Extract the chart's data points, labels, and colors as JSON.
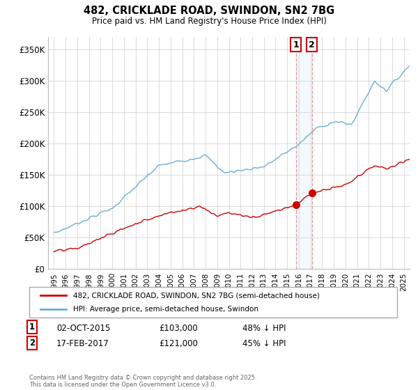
{
  "title1": "482, CRICKLADE ROAD, SWINDON, SN2 7BG",
  "title2": "Price paid vs. HM Land Registry's House Price Index (HPI)",
  "xlim_start": 1994.5,
  "xlim_end": 2025.5,
  "ylim": [
    0,
    370000
  ],
  "yticks": [
    0,
    50000,
    100000,
    150000,
    200000,
    250000,
    300000,
    350000
  ],
  "ytick_labels": [
    "£0",
    "£50K",
    "£100K",
    "£150K",
    "£200K",
    "£250K",
    "£300K",
    "£350K"
  ],
  "xticks": [
    1995,
    1996,
    1997,
    1998,
    1999,
    2000,
    2001,
    2002,
    2003,
    2004,
    2005,
    2006,
    2007,
    2008,
    2009,
    2010,
    2011,
    2012,
    2013,
    2014,
    2015,
    2016,
    2017,
    2018,
    2019,
    2020,
    2021,
    2022,
    2023,
    2024,
    2025
  ],
  "hpi_color": "#6baed6",
  "price_color": "#cc0000",
  "transaction1_date": 2015.75,
  "transaction1_price": 103000,
  "transaction2_date": 2017.12,
  "transaction2_price": 121000,
  "legend_label1": "482, CRICKLADE ROAD, SWINDON, SN2 7BG (semi-detached house)",
  "legend_label2": "HPI: Average price, semi-detached house, Swindon",
  "footnote": "Contains HM Land Registry data © Crown copyright and database right 2025.\nThis data is licensed under the Open Government Licence v3.0.",
  "bg_color": "#ffffff",
  "grid_color": "#cccccc"
}
